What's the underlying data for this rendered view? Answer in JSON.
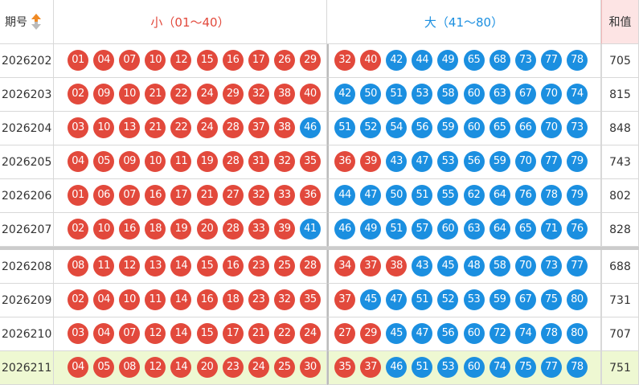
{
  "header": {
    "issue": "期号",
    "small": "小（01～40）",
    "big": "大（41～80）",
    "sum": "和值"
  },
  "colors": {
    "r": "#e2493c",
    "b": "#1b8fe0"
  },
  "rows": [
    {
      "issue": "2026202",
      "small": [
        "01",
        "04",
        "07",
        "10",
        "12",
        "15",
        "16",
        "17",
        "26",
        "29"
      ],
      "small_colors": [
        "r",
        "r",
        "r",
        "r",
        "r",
        "r",
        "r",
        "r",
        "r",
        "r"
      ],
      "big": [
        "32",
        "40",
        "42",
        "44",
        "49",
        "65",
        "68",
        "73",
        "77",
        "78"
      ],
      "big_colors": [
        "r",
        "r",
        "b",
        "b",
        "b",
        "b",
        "b",
        "b",
        "b",
        "b"
      ],
      "sum": "705"
    },
    {
      "issue": "2026203",
      "small": [
        "02",
        "09",
        "10",
        "21",
        "22",
        "24",
        "29",
        "32",
        "38",
        "40"
      ],
      "small_colors": [
        "r",
        "r",
        "r",
        "r",
        "r",
        "r",
        "r",
        "r",
        "r",
        "r"
      ],
      "big": [
        "42",
        "50",
        "51",
        "53",
        "58",
        "60",
        "63",
        "67",
        "70",
        "74"
      ],
      "big_colors": [
        "b",
        "b",
        "b",
        "b",
        "b",
        "b",
        "b",
        "b",
        "b",
        "b"
      ],
      "sum": "815"
    },
    {
      "issue": "2026204",
      "small": [
        "03",
        "10",
        "13",
        "21",
        "22",
        "24",
        "28",
        "37",
        "38",
        "46"
      ],
      "small_colors": [
        "r",
        "r",
        "r",
        "r",
        "r",
        "r",
        "r",
        "r",
        "r",
        "b"
      ],
      "big": [
        "51",
        "52",
        "54",
        "56",
        "59",
        "60",
        "65",
        "66",
        "70",
        "73"
      ],
      "big_colors": [
        "b",
        "b",
        "b",
        "b",
        "b",
        "b",
        "b",
        "b",
        "b",
        "b"
      ],
      "sum": "848"
    },
    {
      "issue": "2026205",
      "small": [
        "04",
        "05",
        "09",
        "10",
        "11",
        "19",
        "28",
        "31",
        "32",
        "35"
      ],
      "small_colors": [
        "r",
        "r",
        "r",
        "r",
        "r",
        "r",
        "r",
        "r",
        "r",
        "r"
      ],
      "big": [
        "36",
        "39",
        "43",
        "47",
        "53",
        "56",
        "59",
        "70",
        "77",
        "79"
      ],
      "big_colors": [
        "r",
        "r",
        "b",
        "b",
        "b",
        "b",
        "b",
        "b",
        "b",
        "b"
      ],
      "sum": "743"
    },
    {
      "issue": "2026206",
      "small": [
        "01",
        "06",
        "07",
        "16",
        "17",
        "21",
        "27",
        "32",
        "33",
        "36"
      ],
      "small_colors": [
        "r",
        "r",
        "r",
        "r",
        "r",
        "r",
        "r",
        "r",
        "r",
        "r"
      ],
      "big": [
        "44",
        "47",
        "50",
        "51",
        "55",
        "62",
        "64",
        "76",
        "78",
        "79"
      ],
      "big_colors": [
        "b",
        "b",
        "b",
        "b",
        "b",
        "b",
        "b",
        "b",
        "b",
        "b"
      ],
      "sum": "802"
    },
    {
      "issue": "2026207",
      "small": [
        "02",
        "10",
        "16",
        "18",
        "19",
        "20",
        "28",
        "33",
        "39",
        "41"
      ],
      "small_colors": [
        "r",
        "r",
        "r",
        "r",
        "r",
        "r",
        "r",
        "r",
        "r",
        "b"
      ],
      "big": [
        "46",
        "49",
        "51",
        "57",
        "60",
        "63",
        "64",
        "65",
        "71",
        "76"
      ],
      "big_colors": [
        "b",
        "b",
        "b",
        "b",
        "b",
        "b",
        "b",
        "b",
        "b",
        "b"
      ],
      "sum": "828"
    },
    {
      "issue": "2026208",
      "small": [
        "08",
        "11",
        "12",
        "13",
        "14",
        "15",
        "16",
        "23",
        "25",
        "28"
      ],
      "small_colors": [
        "r",
        "r",
        "r",
        "r",
        "r",
        "r",
        "r",
        "r",
        "r",
        "r"
      ],
      "big": [
        "34",
        "37",
        "38",
        "43",
        "45",
        "48",
        "58",
        "70",
        "73",
        "77"
      ],
      "big_colors": [
        "r",
        "r",
        "r",
        "b",
        "b",
        "b",
        "b",
        "b",
        "b",
        "b"
      ],
      "sum": "688"
    },
    {
      "issue": "2026209",
      "small": [
        "02",
        "04",
        "10",
        "11",
        "14",
        "16",
        "18",
        "23",
        "32",
        "35"
      ],
      "small_colors": [
        "r",
        "r",
        "r",
        "r",
        "r",
        "r",
        "r",
        "r",
        "r",
        "r"
      ],
      "big": [
        "37",
        "45",
        "47",
        "51",
        "52",
        "53",
        "59",
        "67",
        "75",
        "80"
      ],
      "big_colors": [
        "r",
        "b",
        "b",
        "b",
        "b",
        "b",
        "b",
        "b",
        "b",
        "b"
      ],
      "sum": "731"
    },
    {
      "issue": "2026210",
      "small": [
        "03",
        "04",
        "07",
        "12",
        "14",
        "15",
        "17",
        "21",
        "22",
        "24"
      ],
      "small_colors": [
        "r",
        "r",
        "r",
        "r",
        "r",
        "r",
        "r",
        "r",
        "r",
        "r"
      ],
      "big": [
        "27",
        "29",
        "45",
        "47",
        "56",
        "60",
        "72",
        "74",
        "78",
        "80"
      ],
      "big_colors": [
        "r",
        "r",
        "b",
        "b",
        "b",
        "b",
        "b",
        "b",
        "b",
        "b"
      ],
      "sum": "707"
    },
    {
      "issue": "2026211",
      "small": [
        "04",
        "05",
        "08",
        "12",
        "14",
        "20",
        "23",
        "24",
        "25",
        "30"
      ],
      "small_colors": [
        "r",
        "r",
        "r",
        "r",
        "r",
        "r",
        "r",
        "r",
        "r",
        "r"
      ],
      "big": [
        "35",
        "37",
        "46",
        "51",
        "53",
        "60",
        "74",
        "75",
        "77",
        "78"
      ],
      "big_colors": [
        "r",
        "r",
        "b",
        "b",
        "b",
        "b",
        "b",
        "b",
        "b",
        "b"
      ],
      "sum": "751"
    }
  ]
}
